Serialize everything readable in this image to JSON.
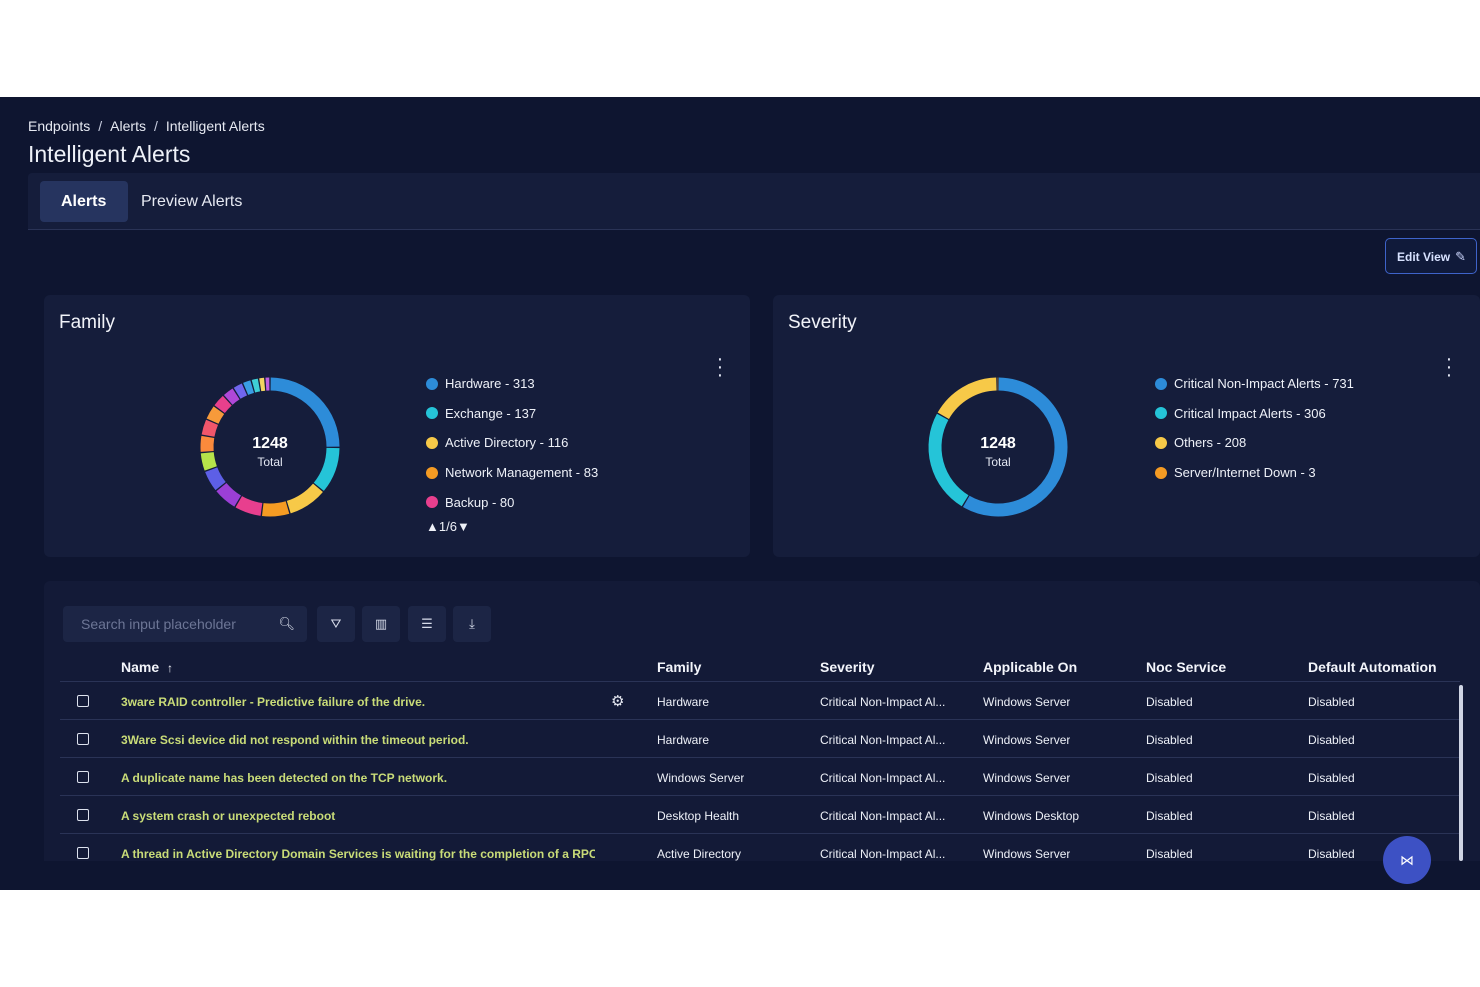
{
  "breadcrumb": [
    "Endpoints",
    "Alerts",
    "Intelligent Alerts"
  ],
  "breadcrumb_sep": "/",
  "page_title": "Intelligent Alerts",
  "tabs": [
    {
      "label": "Alerts",
      "active": true
    },
    {
      "label": "Preview Alerts",
      "active": false
    }
  ],
  "edit_view_label": "Edit View",
  "family": {
    "title": "Family",
    "total": "1248",
    "total_label": "Total",
    "legend": [
      {
        "label": "Hardware - 313",
        "color": "#2d8cd9"
      },
      {
        "label": "Exchange - 137",
        "color": "#25c4d8"
      },
      {
        "label": "Active Directory - 116",
        "color": "#f7c948"
      },
      {
        "label": "Network Management - 83",
        "color": "#f59b23"
      },
      {
        "label": "Backup - 80",
        "color": "#e83f8e"
      }
    ],
    "pager": "1/6",
    "segments": [
      {
        "value": 313,
        "color": "#2d8cd9"
      },
      {
        "value": 137,
        "color": "#25c4d8"
      },
      {
        "value": 116,
        "color": "#f7c948"
      },
      {
        "value": 83,
        "color": "#f59b23"
      },
      {
        "value": 80,
        "color": "#e83f8e"
      },
      {
        "value": 72,
        "color": "#9b3fd6"
      },
      {
        "value": 64,
        "color": "#5d5fe6"
      },
      {
        "value": 55,
        "color": "#b6e34a"
      },
      {
        "value": 50,
        "color": "#fb8a3c"
      },
      {
        "value": 48,
        "color": "#f0566b"
      },
      {
        "value": 44,
        "color": "#f79a3a"
      },
      {
        "value": 40,
        "color": "#e8408c"
      },
      {
        "value": 35,
        "color": "#b048d8"
      },
      {
        "value": 30,
        "color": "#7066ee"
      },
      {
        "value": 26,
        "color": "#3a9ee4"
      },
      {
        "value": 22,
        "color": "#3ecfd6"
      },
      {
        "value": 18,
        "color": "#f3d561"
      },
      {
        "value": 15,
        "color": "#bf5ee0"
      }
    ]
  },
  "severity": {
    "title": "Severity",
    "total": "1248",
    "total_label": "Total",
    "legend": [
      {
        "label": "Critical Non-Impact Alerts - 731",
        "color": "#2d8cd9"
      },
      {
        "label": "Critical Impact Alerts - 306",
        "color": "#25c4d8"
      },
      {
        "label": "Others - 208",
        "color": "#f7c948"
      },
      {
        "label": "Server/Internet Down - 3",
        "color": "#f59b23"
      }
    ],
    "segments": [
      {
        "value": 731,
        "color": "#2d8cd9"
      },
      {
        "value": 306,
        "color": "#25c4d8"
      },
      {
        "value": 208,
        "color": "#f7c948"
      },
      {
        "value": 3,
        "color": "#f59b23"
      }
    ]
  },
  "search": {
    "placeholder": "Search input placeholder"
  },
  "table": {
    "columns": [
      "Name",
      "Family",
      "Severity",
      "Applicable On",
      "Noc Service",
      "Default Automation"
    ],
    "sort_indicator": "↑",
    "rows": [
      {
        "name": "3ware RAID controller - Predictive failure of the drive.",
        "family": "Hardware",
        "severity": "Critical Non-Impact Al...",
        "applicable_on": "Windows Server",
        "noc_service": "Disabled",
        "default_automation": "Disabled"
      },
      {
        "name": "3Ware Scsi device did not respond within the timeout period.",
        "family": "Hardware",
        "severity": "Critical Non-Impact Al...",
        "applicable_on": "Windows Server",
        "noc_service": "Disabled",
        "default_automation": "Disabled"
      },
      {
        "name": "A duplicate name has been detected on the TCP network.",
        "family": "Windows Server",
        "severity": "Critical Non-Impact Al...",
        "applicable_on": "Windows Server",
        "noc_service": "Disabled",
        "default_automation": "Disabled"
      },
      {
        "name": "A system crash or unexpected reboot",
        "family": "Desktop Health",
        "severity": "Critical Non-Impact Al...",
        "applicable_on": "Windows Desktop",
        "noc_service": "Disabled",
        "default_automation": "Disabled"
      },
      {
        "name": "A thread in Active Directory Domain Services is waiting for the completion of a RPC ma",
        "family": "Active Directory",
        "severity": "Critical Non-Impact Al...",
        "applicable_on": "Windows Server",
        "noc_service": "Disabled",
        "default_automation": "Disabled"
      }
    ]
  }
}
